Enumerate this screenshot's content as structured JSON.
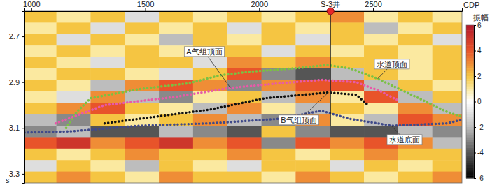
{
  "chart_data": {
    "type": "heatmap",
    "x_label": "CDP",
    "y_label": "s",
    "xlim": [
      970,
      2890
    ],
    "xticks": [
      1000,
      1500,
      2000,
      2500
    ],
    "ylim": [
      2.59,
      3.34
    ],
    "yticks": [
      2.7,
      2.9,
      3.1,
      3.3
    ],
    "x_bins": [
      960,
      1110,
      1260,
      1410,
      1560,
      1710,
      1860,
      2010,
      2160,
      2310,
      2460,
      2610,
      2760,
      2910
    ],
    "y_bins": [
      2.59,
      2.64,
      2.69,
      2.74,
      2.79,
      2.84,
      2.89,
      2.94,
      2.99,
      3.04,
      3.09,
      3.14,
      3.19,
      3.24,
      3.29,
      3.34
    ],
    "cells": [
      [
        2,
        1,
        2,
        -1,
        2,
        1,
        2,
        1,
        2,
        3,
        1,
        2,
        1
      ],
      [
        1,
        2,
        -1,
        2,
        1,
        2,
        -1,
        2,
        1,
        2,
        -2,
        1,
        2
      ],
      [
        2,
        -1,
        2,
        1,
        -2,
        2,
        1,
        2,
        -1,
        2,
        1,
        2,
        -1
      ],
      [
        1,
        2,
        1,
        2,
        1,
        2,
        2,
        -1,
        2,
        1,
        2,
        1,
        2
      ],
      [
        2,
        1,
        -1,
        2,
        2,
        -1,
        3,
        2,
        3,
        2,
        2,
        1,
        2
      ],
      [
        1,
        2,
        2,
        1,
        -1,
        2,
        4,
        -3,
        -4,
        -2,
        2,
        1,
        2
      ],
      [
        2,
        1,
        -2,
        3,
        4,
        3,
        -3,
        3,
        4,
        4,
        -2,
        2,
        1
      ],
      [
        1,
        -1,
        3,
        -2,
        -3,
        1,
        2,
        -2,
        3,
        1,
        4,
        -2,
        2
      ],
      [
        2,
        3,
        4,
        2,
        1,
        -2,
        3,
        1,
        -2,
        2,
        1,
        3,
        -2
      ],
      [
        -2,
        -3,
        2,
        1,
        2,
        3,
        -2,
        -3,
        3,
        1,
        -2,
        4,
        3
      ],
      [
        -3,
        -2,
        -4,
        -4,
        -2,
        -3,
        -4,
        2,
        -3,
        -4,
        -4,
        -2,
        -3
      ],
      [
        4,
        5,
        3,
        4,
        5,
        3,
        4,
        -3,
        4,
        3,
        4,
        3,
        -2
      ],
      [
        2,
        1,
        2,
        3,
        2,
        2,
        3,
        2,
        1,
        2,
        3,
        2,
        2
      ],
      [
        -1,
        2,
        1,
        -2,
        2,
        1,
        -1,
        2,
        2,
        -1,
        2,
        1,
        2
      ],
      [
        2,
        3,
        2,
        1,
        3,
        2,
        2,
        1,
        3,
        2,
        1,
        2,
        3
      ]
    ],
    "colorbar": {
      "label": "振幅",
      "range": [
        -6,
        6
      ],
      "ticks": [
        6,
        4,
        2,
        0,
        -2,
        -4,
        -6
      ]
    },
    "series": [
      {
        "name": "水道顶面",
        "color": "#7ac143",
        "line_style": "dotted",
        "x": [
          1153,
          1199,
          1261,
          1475,
          1690,
          1830,
          1950,
          2150,
          2300,
          2400,
          2520,
          2700,
          2825,
          2886
        ],
        "values": [
          3.1,
          3.03,
          2.97,
          2.93,
          2.905,
          2.87,
          2.855,
          2.84,
          2.825,
          2.84,
          2.885,
          2.97,
          3.03,
          3.05
        ]
      },
      {
        "name": "A气组顶面",
        "color": "#e75aa8",
        "line_style": "dotted",
        "x": [
          1107,
          1322,
          1629,
          1874,
          2089,
          2273,
          2426,
          2533,
          2610
        ],
        "values": [
          3.08,
          3.0,
          2.965,
          2.925,
          2.905,
          2.89,
          2.9,
          2.94,
          2.98
        ]
      },
      {
        "name": "B气组顶面",
        "color": "#111111",
        "line_style": "dotted",
        "x": [
          1322,
          1475,
          1782,
          2027,
          2304,
          2426,
          2472
        ],
        "values": [
          3.08,
          3.06,
          3.02,
          2.97,
          2.945,
          2.955,
          2.995
        ]
      },
      {
        "name": "水道底面",
        "color": "#3f4a8a",
        "line_style": "dotted",
        "x": [
          970,
          1169,
          1475,
          1782,
          2089,
          2273,
          2396,
          2580,
          2825,
          2886
        ],
        "values": [
          3.12,
          3.115,
          3.09,
          3.08,
          3.06,
          3.025,
          3.06,
          3.09,
          3.08,
          3.065
        ]
      }
    ],
    "well": {
      "label": "S-3井",
      "x": 2313,
      "values": [
        2.59,
        3.09
      ]
    }
  }
}
